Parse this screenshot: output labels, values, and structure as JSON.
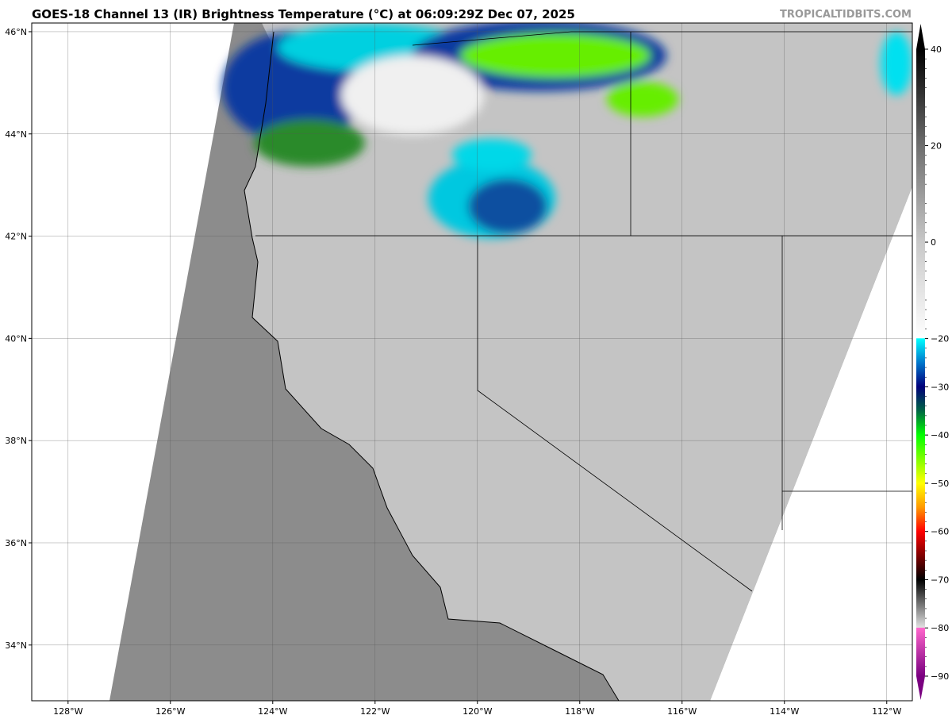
{
  "title": "GOES-18 Channel 13 (IR) Brightness Temperature (°C) at 06:09:29Z Dec 07, 2025",
  "credit": "TROPICALTIDBITS.COM",
  "map": {
    "lon_range": [
      -128.71,
      -111.5
    ],
    "lat_range": [
      32.91,
      46.17
    ],
    "lon_ticks": [
      -128,
      -126,
      -124,
      -122,
      -120,
      -118,
      -116,
      -114,
      -112
    ],
    "lon_tick_labels": [
      "128°W",
      "126°W",
      "124°W",
      "122°W",
      "120°W",
      "118°W",
      "116°W",
      "114°W",
      "112°W"
    ],
    "lat_ticks": [
      34,
      36,
      38,
      40,
      42,
      44,
      46
    ],
    "lat_tick_labels": [
      "34°N",
      "36°N",
      "38°N",
      "40°N",
      "42°N",
      "44°N",
      "46°N"
    ],
    "gridlines": true,
    "ocean_color": "#8c8c8c",
    "land_color": "#c4c4c4"
  },
  "colorbar": {
    "range": [
      -90,
      40
    ],
    "ticks": [
      40,
      20,
      0,
      -20,
      -30,
      -40,
      -50,
      -60,
      -70,
      -80,
      -90
    ],
    "tick_labels": [
      "40",
      "20",
      "0",
      "−20",
      "−30",
      "−40",
      "−50",
      "−60",
      "−70",
      "−80",
      "−90"
    ],
    "extend": "both",
    "stops": [
      {
        "v": 40,
        "c": "#000000"
      },
      {
        "v": 20,
        "c": "#6e6e6e"
      },
      {
        "v": 0,
        "c": "#c8c8c8"
      },
      {
        "v": -19.9,
        "c": "#ffffff"
      },
      {
        "v": -20,
        "c": "#00ffff"
      },
      {
        "v": -25,
        "c": "#0077cc"
      },
      {
        "v": -30,
        "c": "#00007a"
      },
      {
        "v": -35,
        "c": "#006644"
      },
      {
        "v": -40,
        "c": "#00ff00"
      },
      {
        "v": -50,
        "c": "#ffff00"
      },
      {
        "v": -55,
        "c": "#ff9900"
      },
      {
        "v": -60,
        "c": "#ff0000"
      },
      {
        "v": -70,
        "c": "#000000"
      },
      {
        "v": -79.9,
        "c": "#e0e0e0"
      },
      {
        "v": -80,
        "c": "#ff66cc"
      },
      {
        "v": -90,
        "c": "#7a0080"
      }
    ]
  }
}
